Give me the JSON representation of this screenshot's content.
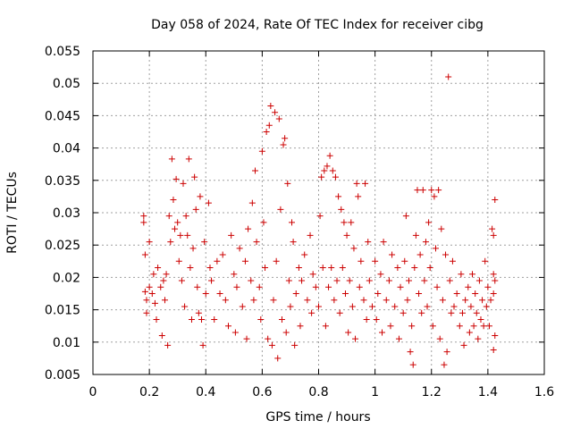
{
  "chart_data": {
    "type": "scatter",
    "title": "Day 058 of 2024, Rate Of TEC Index for receiver cibg",
    "xlabel": "GPS time / hours",
    "ylabel": "ROTI / TECUs",
    "xlim": [
      0,
      1.6
    ],
    "ylim": [
      0.005,
      0.055
    ],
    "xticks": [
      0,
      0.2,
      0.4,
      0.6,
      0.8,
      1,
      1.2,
      1.4,
      1.6
    ],
    "xtick_labels": [
      "0",
      "0.2",
      "0.4",
      "0.6",
      "0.8",
      "1",
      "1.2",
      "1.4",
      "1.6"
    ],
    "yticks": [
      0.005,
      0.01,
      0.015,
      0.02,
      0.025,
      0.03,
      0.035,
      0.04,
      0.045,
      0.05,
      0.055
    ],
    "ytick_labels": [
      "0.005",
      "0.01",
      "0.015",
      "0.02",
      "0.025",
      "0.03",
      "0.035",
      "0.04",
      "0.045",
      "0.05",
      "0.055"
    ],
    "grid": true,
    "marker": "+",
    "marker_color": "#cc0000",
    "series": [
      {
        "name": "ROTI",
        "points": [
          [
            0.18,
            0.0295
          ],
          [
            0.18,
            0.0285
          ],
          [
            0.185,
            0.0235
          ],
          [
            0.185,
            0.0178
          ],
          [
            0.19,
            0.0165
          ],
          [
            0.19,
            0.0145
          ],
          [
            0.2,
            0.0255
          ],
          [
            0.2,
            0.0185
          ],
          [
            0.21,
            0.0175
          ],
          [
            0.215,
            0.0205
          ],
          [
            0.22,
            0.016
          ],
          [
            0.225,
            0.0135
          ],
          [
            0.23,
            0.0215
          ],
          [
            0.24,
            0.0185
          ],
          [
            0.245,
            0.011
          ],
          [
            0.25,
            0.0195
          ],
          [
            0.255,
            0.0165
          ],
          [
            0.26,
            0.0205
          ],
          [
            0.265,
            0.0095
          ],
          [
            0.27,
            0.0295
          ],
          [
            0.275,
            0.0255
          ],
          [
            0.28,
            0.0383
          ],
          [
            0.285,
            0.032
          ],
          [
            0.29,
            0.0275
          ],
          [
            0.295,
            0.0352
          ],
          [
            0.3,
            0.0285
          ],
          [
            0.305,
            0.0225
          ],
          [
            0.31,
            0.0265
          ],
          [
            0.315,
            0.0195
          ],
          [
            0.32,
            0.0345
          ],
          [
            0.325,
            0.0155
          ],
          [
            0.33,
            0.0295
          ],
          [
            0.335,
            0.0265
          ],
          [
            0.34,
            0.0383
          ],
          [
            0.345,
            0.0215
          ],
          [
            0.35,
            0.0135
          ],
          [
            0.355,
            0.0245
          ],
          [
            0.36,
            0.0355
          ],
          [
            0.365,
            0.0305
          ],
          [
            0.37,
            0.0185
          ],
          [
            0.375,
            0.0145
          ],
          [
            0.38,
            0.0325
          ],
          [
            0.385,
            0.0135
          ],
          [
            0.39,
            0.0095
          ],
          [
            0.395,
            0.0255
          ],
          [
            0.4,
            0.0175
          ],
          [
            0.41,
            0.0315
          ],
          [
            0.415,
            0.0215
          ],
          [
            0.42,
            0.0195
          ],
          [
            0.43,
            0.0135
          ],
          [
            0.44,
            0.0225
          ],
          [
            0.45,
            0.0175
          ],
          [
            0.46,
            0.0235
          ],
          [
            0.47,
            0.0165
          ],
          [
            0.48,
            0.0125
          ],
          [
            0.49,
            0.0265
          ],
          [
            0.5,
            0.0205
          ],
          [
            0.505,
            0.0115
          ],
          [
            0.51,
            0.0185
          ],
          [
            0.52,
            0.0245
          ],
          [
            0.53,
            0.0155
          ],
          [
            0.54,
            0.0225
          ],
          [
            0.545,
            0.0105
          ],
          [
            0.55,
            0.0275
          ],
          [
            0.56,
            0.0195
          ],
          [
            0.565,
            0.0315
          ],
          [
            0.57,
            0.0165
          ],
          [
            0.575,
            0.0365
          ],
          [
            0.58,
            0.0255
          ],
          [
            0.59,
            0.0185
          ],
          [
            0.595,
            0.0135
          ],
          [
            0.6,
            0.0395
          ],
          [
            0.605,
            0.0285
          ],
          [
            0.61,
            0.0215
          ],
          [
            0.615,
            0.0425
          ],
          [
            0.62,
            0.0105
          ],
          [
            0.625,
            0.0435
          ],
          [
            0.63,
            0.0465
          ],
          [
            0.635,
            0.0095
          ],
          [
            0.64,
            0.0165
          ],
          [
            0.645,
            0.0455
          ],
          [
            0.65,
            0.0225
          ],
          [
            0.655,
            0.0075
          ],
          [
            0.66,
            0.0445
          ],
          [
            0.665,
            0.0305
          ],
          [
            0.67,
            0.0135
          ],
          [
            0.675,
            0.0405
          ],
          [
            0.68,
            0.0415
          ],
          [
            0.685,
            0.0115
          ],
          [
            0.69,
            0.0345
          ],
          [
            0.695,
            0.0195
          ],
          [
            0.7,
            0.0155
          ],
          [
            0.705,
            0.0285
          ],
          [
            0.71,
            0.0255
          ],
          [
            0.715,
            0.0095
          ],
          [
            0.72,
            0.0175
          ],
          [
            0.73,
            0.0215
          ],
          [
            0.735,
            0.0125
          ],
          [
            0.74,
            0.0195
          ],
          [
            0.75,
            0.0235
          ],
          [
            0.76,
            0.0165
          ],
          [
            0.77,
            0.0265
          ],
          [
            0.775,
            0.0145
          ],
          [
            0.78,
            0.0205
          ],
          [
            0.79,
            0.0185
          ],
          [
            0.8,
            0.0155
          ],
          [
            0.805,
            0.0295
          ],
          [
            0.81,
            0.0355
          ],
          [
            0.815,
            0.0215
          ],
          [
            0.82,
            0.0365
          ],
          [
            0.825,
            0.0125
          ],
          [
            0.83,
            0.0372
          ],
          [
            0.835,
            0.0185
          ],
          [
            0.84,
            0.0388
          ],
          [
            0.845,
            0.0215
          ],
          [
            0.85,
            0.0365
          ],
          [
            0.855,
            0.0165
          ],
          [
            0.86,
            0.0355
          ],
          [
            0.865,
            0.0195
          ],
          [
            0.87,
            0.0325
          ],
          [
            0.875,
            0.0145
          ],
          [
            0.88,
            0.0305
          ],
          [
            0.885,
            0.0215
          ],
          [
            0.89,
            0.0285
          ],
          [
            0.895,
            0.0175
          ],
          [
            0.9,
            0.0265
          ],
          [
            0.905,
            0.0115
          ],
          [
            0.91,
            0.0195
          ],
          [
            0.915,
            0.0285
          ],
          [
            0.92,
            0.0155
          ],
          [
            0.925,
            0.0245
          ],
          [
            0.93,
            0.0105
          ],
          [
            0.935,
            0.0345
          ],
          [
            0.94,
            0.0325
          ],
          [
            0.945,
            0.0185
          ],
          [
            0.95,
            0.0225
          ],
          [
            0.96,
            0.0165
          ],
          [
            0.965,
            0.0345
          ],
          [
            0.97,
            0.0135
          ],
          [
            0.975,
            0.0255
          ],
          [
            0.98,
            0.0195
          ],
          [
            0.99,
            0.0155
          ],
          [
            1.0,
            0.0225
          ],
          [
            1.005,
            0.0135
          ],
          [
            1.01,
            0.0175
          ],
          [
            1.02,
            0.0205
          ],
          [
            1.025,
            0.0115
          ],
          [
            1.03,
            0.0255
          ],
          [
            1.04,
            0.0165
          ],
          [
            1.05,
            0.0195
          ],
          [
            1.055,
            0.0125
          ],
          [
            1.06,
            0.0235
          ],
          [
            1.07,
            0.0155
          ],
          [
            1.08,
            0.0215
          ],
          [
            1.085,
            0.0105
          ],
          [
            1.09,
            0.0185
          ],
          [
            1.1,
            0.0145
          ],
          [
            1.105,
            0.0225
          ],
          [
            1.11,
            0.0295
          ],
          [
            1.115,
            0.0165
          ],
          [
            1.12,
            0.0195
          ],
          [
            1.125,
            0.0085
          ],
          [
            1.13,
            0.0125
          ],
          [
            1.135,
            0.0065
          ],
          [
            1.14,
            0.0215
          ],
          [
            1.145,
            0.0265
          ],
          [
            1.15,
            0.0335
          ],
          [
            1.155,
            0.0175
          ],
          [
            1.16,
            0.0235
          ],
          [
            1.165,
            0.0145
          ],
          [
            1.17,
            0.0335
          ],
          [
            1.175,
            0.0195
          ],
          [
            1.18,
            0.0255
          ],
          [
            1.185,
            0.0155
          ],
          [
            1.19,
            0.0285
          ],
          [
            1.195,
            0.0215
          ],
          [
            1.2,
            0.0335
          ],
          [
            1.205,
            0.0125
          ],
          [
            1.21,
            0.0325
          ],
          [
            1.215,
            0.0245
          ],
          [
            1.22,
            0.0185
          ],
          [
            1.225,
            0.0335
          ],
          [
            1.23,
            0.0105
          ],
          [
            1.235,
            0.0275
          ],
          [
            1.24,
            0.0165
          ],
          [
            1.245,
            0.0065
          ],
          [
            1.25,
            0.0235
          ],
          [
            1.255,
            0.0085
          ],
          [
            1.26,
            0.051
          ],
          [
            1.265,
            0.0195
          ],
          [
            1.27,
            0.0145
          ],
          [
            1.275,
            0.0225
          ],
          [
            1.28,
            0.0155
          ],
          [
            1.29,
            0.0175
          ],
          [
            1.3,
            0.0125
          ],
          [
            1.305,
            0.0205
          ],
          [
            1.31,
            0.0145
          ],
          [
            1.315,
            0.0095
          ],
          [
            1.32,
            0.0165
          ],
          [
            1.33,
            0.0185
          ],
          [
            1.335,
            0.0115
          ],
          [
            1.34,
            0.0155
          ],
          [
            1.345,
            0.0205
          ],
          [
            1.35,
            0.0125
          ],
          [
            1.355,
            0.0175
          ],
          [
            1.36,
            0.0145
          ],
          [
            1.365,
            0.0105
          ],
          [
            1.37,
            0.0195
          ],
          [
            1.375,
            0.0135
          ],
          [
            1.38,
            0.0165
          ],
          [
            1.385,
            0.0125
          ],
          [
            1.39,
            0.0225
          ],
          [
            1.395,
            0.0155
          ],
          [
            1.4,
            0.0185
          ],
          [
            1.405,
            0.0125
          ],
          [
            1.41,
            0.0165
          ],
          [
            1.415,
            0.0275
          ],
          [
            1.42,
            0.0205
          ],
          [
            1.42,
            0.0265
          ],
          [
            1.42,
            0.0175
          ],
          [
            1.425,
            0.032
          ],
          [
            1.425,
            0.0195
          ],
          [
            1.425,
            0.011
          ],
          [
            1.42,
            0.0088
          ]
        ]
      }
    ]
  }
}
